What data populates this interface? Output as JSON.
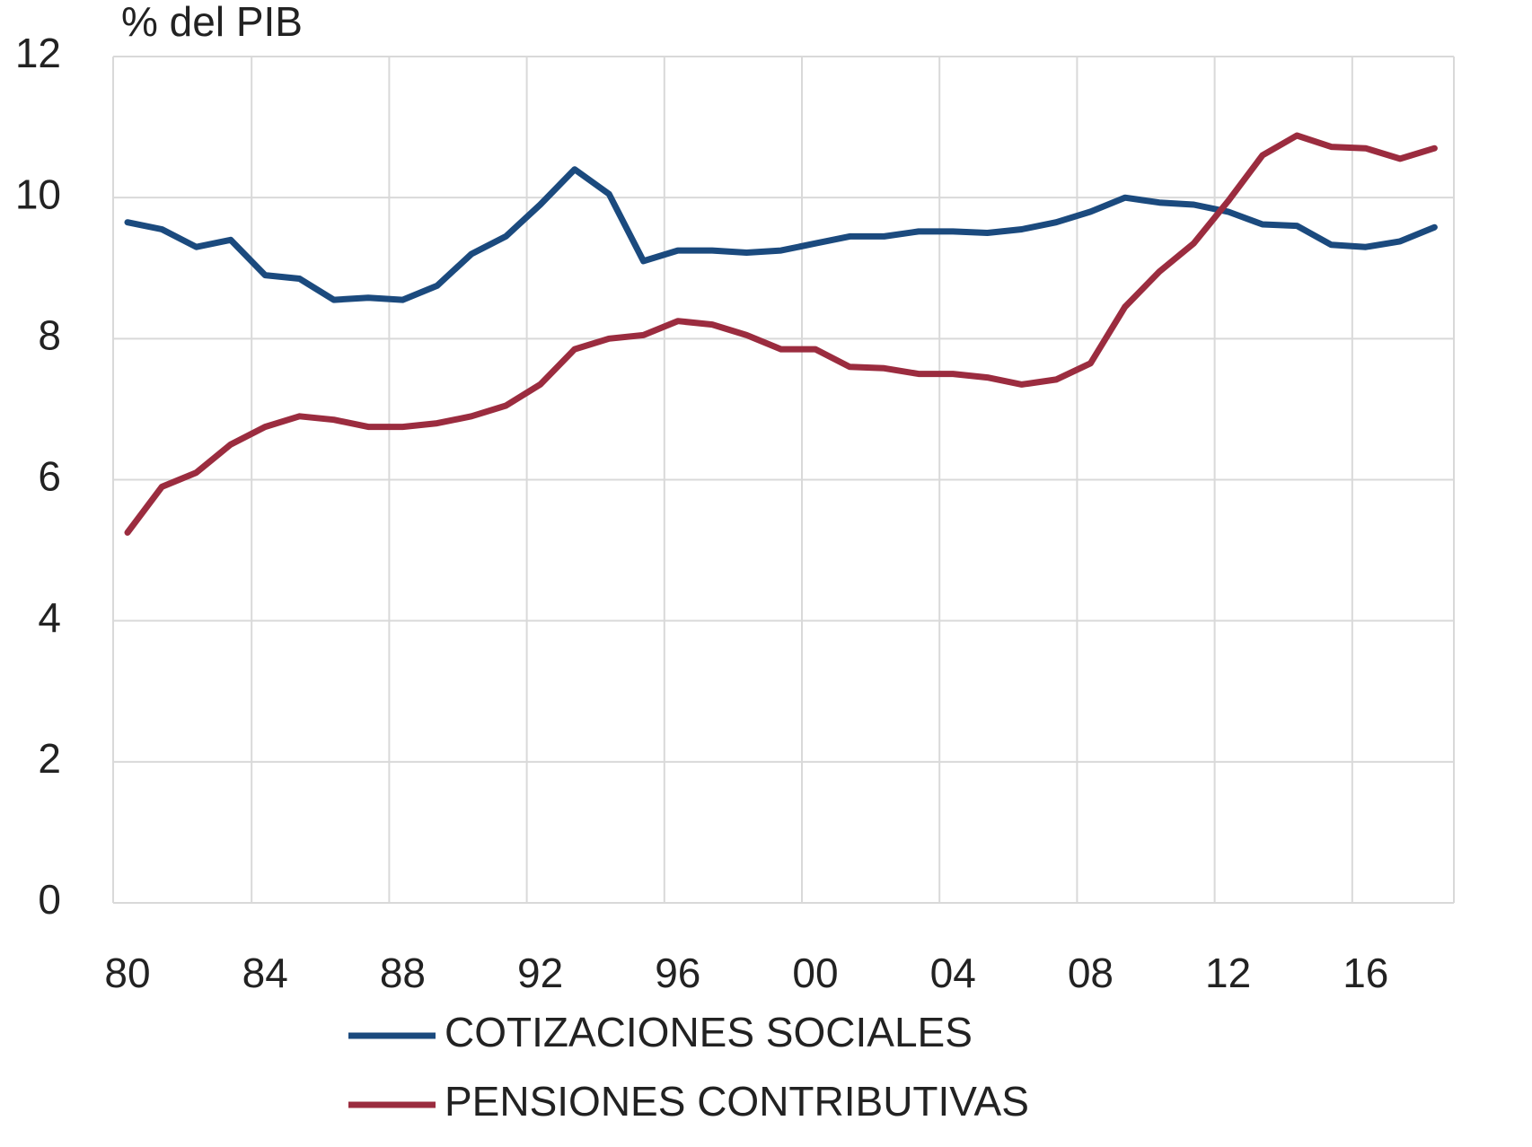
{
  "chart_data": {
    "type": "line",
    "y_label": "% del PIB",
    "categories": [
      "80",
      null,
      null,
      null,
      "84",
      null,
      null,
      null,
      "88",
      null,
      null,
      null,
      "92",
      null,
      null,
      null,
      "96",
      null,
      null,
      null,
      "00",
      null,
      null,
      null,
      "04",
      null,
      null,
      null,
      "08",
      null,
      null,
      null,
      "12",
      null,
      null,
      null,
      "16",
      null,
      null
    ],
    "series": [
      {
        "name": "COTIZACIONES SOCIALES",
        "color": "#1b4a7e",
        "values": [
          9.65,
          9.55,
          9.3,
          9.4,
          8.9,
          8.85,
          8.55,
          8.58,
          8.55,
          8.75,
          9.2,
          9.45,
          9.9,
          10.4,
          10.05,
          9.1,
          9.25,
          9.25,
          9.22,
          9.25,
          9.35,
          9.45,
          9.45,
          9.52,
          9.52,
          9.5,
          9.55,
          9.65,
          9.8,
          10.0,
          9.93,
          9.9,
          9.8,
          9.62,
          9.6,
          9.33,
          9.3,
          9.38,
          9.58
        ]
      },
      {
        "name": "PENSIONES CONTRIBUTIVAS",
        "color": "#9b2c3f",
        "values": [
          5.25,
          5.9,
          6.1,
          6.5,
          6.75,
          6.9,
          6.85,
          6.75,
          6.75,
          6.8,
          6.9,
          7.05,
          7.35,
          7.85,
          8.0,
          8.05,
          8.25,
          8.2,
          8.05,
          7.85,
          7.85,
          7.6,
          7.58,
          7.5,
          7.5,
          7.45,
          7.35,
          7.42,
          7.65,
          8.45,
          8.95,
          9.35,
          9.95,
          10.6,
          10.88,
          10.72,
          10.7,
          10.55,
          10.7
        ]
      }
    ],
    "ylim": [
      0,
      12
    ],
    "yticks": [
      0,
      2,
      4,
      6,
      8,
      10,
      12
    ],
    "grid": true
  }
}
